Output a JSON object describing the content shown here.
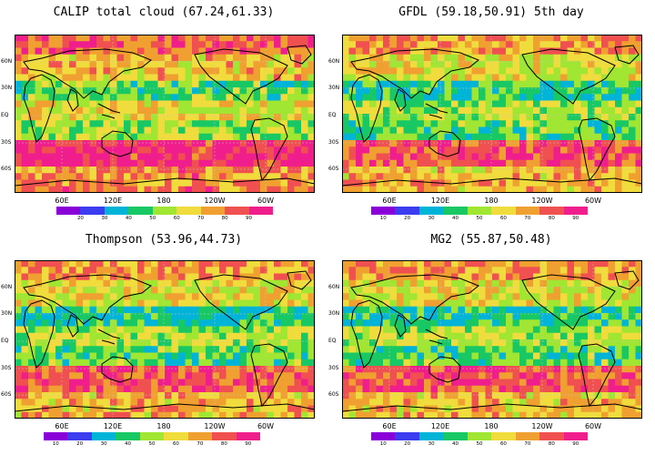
{
  "panels": [
    {
      "title": "CALIP total cloud (67.24,61.33)",
      "colorbar_ticks": [
        "20",
        "30",
        "40",
        "50",
        "60",
        "70",
        "80",
        "90"
      ]
    },
    {
      "title": "GFDL (59.18,50.91) 5th day",
      "colorbar_ticks": [
        "10",
        "20",
        "30",
        "40",
        "50",
        "60",
        "70",
        "80",
        "90"
      ]
    },
    {
      "title": "Thompson (53.96,44.73)",
      "colorbar_ticks": [
        "10",
        "20",
        "30",
        "40",
        "50",
        "60",
        "70",
        "80",
        "90"
      ]
    },
    {
      "title": "MG2 (55.87,50.48)",
      "colorbar_ticks": [
        "10",
        "20",
        "30",
        "40",
        "50",
        "60",
        "70",
        "80",
        "90"
      ]
    }
  ],
  "lat_labels": [
    "60N",
    "30N",
    "EQ",
    "30S",
    "60S"
  ],
  "lon_labels": [
    "60E",
    "120E",
    "180",
    "120W",
    "60W"
  ],
  "palette": [
    "#8a00d8",
    "#3c3cf0",
    "#00b4d8",
    "#18c864",
    "#a0e632",
    "#f0dc3c",
    "#f0a030",
    "#f05050",
    "#f01e8c"
  ]
}
